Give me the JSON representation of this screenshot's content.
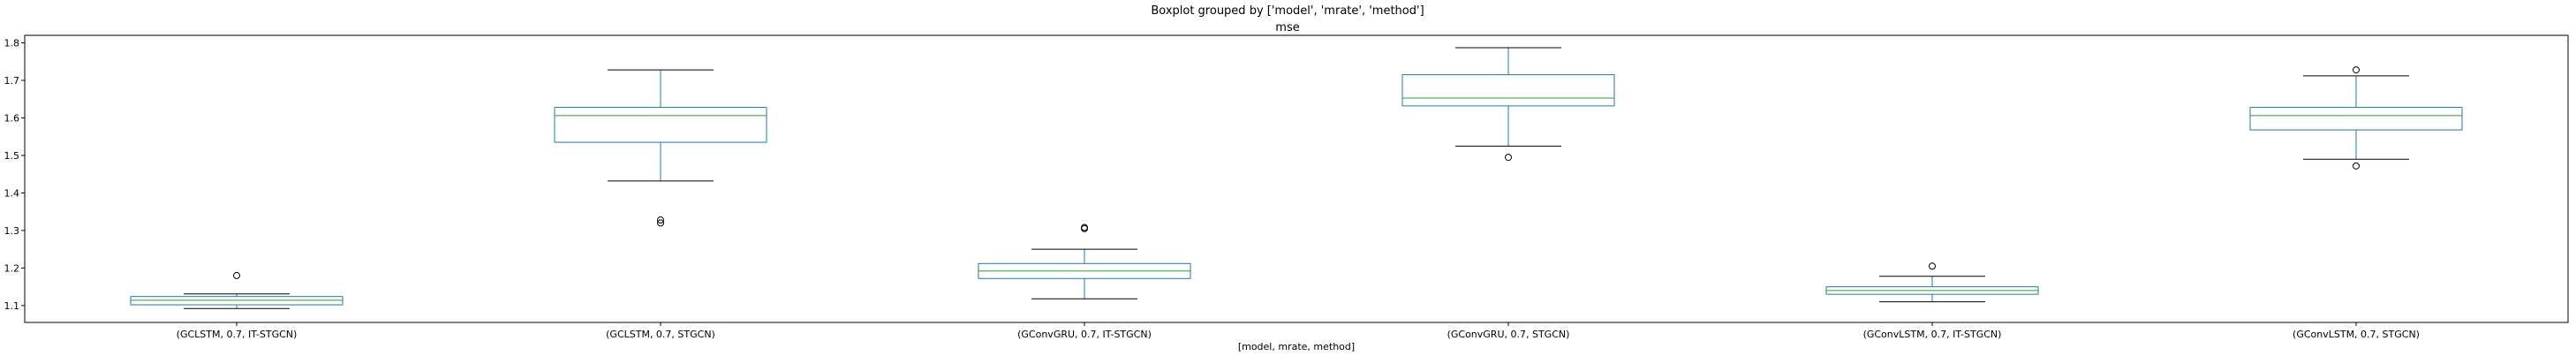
{
  "chart_data": {
    "type": "boxplot",
    "suptitle": "Boxplot grouped by ['model', 'mrate', 'method']",
    "title": "mse",
    "xlabel": "[model, mrate, method]",
    "ylabel": "",
    "ylim": [
      1.055,
      1.82
    ],
    "yticks": [
      1.1,
      1.2,
      1.3,
      1.4,
      1.5,
      1.6,
      1.7,
      1.8
    ],
    "grid": false,
    "colors": {
      "box": "#1f77b4",
      "median": "#2ca02c",
      "whisker": "#000000",
      "flier": "#000000"
    },
    "categories": [
      "(GCLSTM, 0.7, IT-STGCN)",
      "(GCLSTM, 0.7, STGCN)",
      "(GConvGRU, 0.7, IT-STGCN)",
      "(GConvGRU, 0.7, STGCN)",
      "(GConvLSTM, 0.7, IT-STGCN)",
      "(GConvLSTM, 0.7, STGCN)"
    ],
    "boxes": [
      {
        "whislo": 1.092,
        "q1": 1.102,
        "med": 1.114,
        "q3": 1.124,
        "whishi": 1.131,
        "fliers": [
          1.18
        ]
      },
      {
        "whislo": 1.432,
        "q1": 1.535,
        "med": 1.606,
        "q3": 1.628,
        "whishi": 1.728,
        "fliers": [
          1.32,
          1.328
        ]
      },
      {
        "whislo": 1.118,
        "q1": 1.172,
        "med": 1.192,
        "q3": 1.212,
        "whishi": 1.25,
        "fliers": [
          1.305,
          1.308
        ]
      },
      {
        "whislo": 1.525,
        "q1": 1.632,
        "med": 1.653,
        "q3": 1.715,
        "whishi": 1.787,
        "fliers": [
          1.495
        ]
      },
      {
        "whislo": 1.11,
        "q1": 1.13,
        "med": 1.14,
        "q3": 1.15,
        "whishi": 1.178,
        "fliers": [
          1.205
        ]
      },
      {
        "whislo": 1.49,
        "q1": 1.568,
        "med": 1.606,
        "q3": 1.628,
        "whishi": 1.712,
        "fliers": [
          1.472,
          1.728
        ]
      }
    ]
  }
}
